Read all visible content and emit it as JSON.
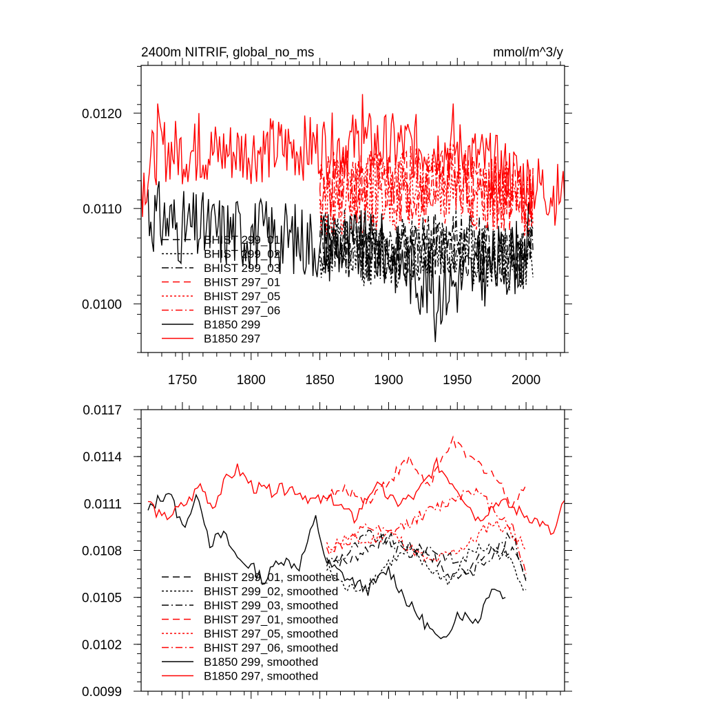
{
  "colors": {
    "black_series": "#000000",
    "red_series": "#ff0000",
    "frame": "#000000",
    "background": "#ffffff"
  },
  "chart_data": [
    {
      "type": "line",
      "title": "2400m NITRIF, global_no_ms",
      "units": "mmol/m^3/y",
      "xlim": [
        1720,
        2028
      ],
      "ylim": [
        0.00949,
        0.0125
      ],
      "xticks": [
        1750,
        1800,
        1850,
        1900,
        1950,
        2000
      ],
      "xtick_labels": [
        "1750",
        "1800",
        "1850",
        "1900",
        "1950",
        "2000"
      ],
      "yticks": [
        0.01,
        0.011,
        0.012
      ],
      "ytick_labels": [
        "0.0100",
        "0.0110",
        "0.0120"
      ],
      "legend_position": "lower-left",
      "series": [
        {
          "name": "BHIST 299_01",
          "color": "black",
          "dash": "dashed",
          "x_start": 1850,
          "x_end": 2005,
          "mean": 0.01065,
          "amp": 0.00035,
          "seed": 11,
          "values_sample": {
            "1850": 0.0106,
            "1900": 0.0104,
            "1950": 0.0106,
            "2000": 0.0103
          }
        },
        {
          "name": "BHIST 299_02",
          "color": "black",
          "dash": "dotted",
          "x_start": 1850,
          "x_end": 2005,
          "mean": 0.01062,
          "amp": 0.00035,
          "seed": 12,
          "values_sample": {
            "1850": 0.0105,
            "1900": 0.0104,
            "1950": 0.0105,
            "2000": 0.0102
          }
        },
        {
          "name": "BHIST 299_03",
          "color": "black",
          "dash": "dashdot",
          "x_start": 1850,
          "x_end": 2005,
          "mean": 0.01068,
          "amp": 0.00035,
          "seed": 13,
          "values_sample": {
            "1850": 0.0107,
            "1900": 0.0105,
            "1950": 0.0106,
            "2000": 0.0104
          }
        },
        {
          "name": "BHIST 297_01",
          "color": "red",
          "dash": "dashed",
          "x_start": 1850,
          "x_end": 2005,
          "mean": 0.01115,
          "amp": 0.0004,
          "seed": 21,
          "values_sample": {
            "1850": 0.0112,
            "1900": 0.0114,
            "1950": 0.0113,
            "2000": 0.0111
          }
        },
        {
          "name": "BHIST 297_05",
          "color": "red",
          "dash": "dotted",
          "x_start": 1850,
          "x_end": 2005,
          "mean": 0.0111,
          "amp": 0.0004,
          "seed": 22,
          "values_sample": {
            "1850": 0.0111,
            "1900": 0.0112,
            "1950": 0.0113,
            "2000": 0.0109
          }
        },
        {
          "name": "BHIST 297_06",
          "color": "red",
          "dash": "dashdot",
          "x_start": 1850,
          "x_end": 2005,
          "mean": 0.0112,
          "amp": 0.0004,
          "seed": 23,
          "values_sample": {
            "1850": 0.0112,
            "1900": 0.0113,
            "1950": 0.0114,
            "2000": 0.011
          }
        },
        {
          "name": "B1850 299",
          "color": "black",
          "dash": "solid",
          "x_start": 1725,
          "x_end": 2002,
          "mean": 0.0107,
          "amp": 0.0004,
          "seed": 31,
          "values_sample": {
            "1725": 0.0112,
            "1750": 0.0109,
            "1800": 0.0108,
            "1850": 0.0106,
            "1900": 0.0104,
            "1934": 0.0096,
            "2000": 0.0104
          }
        },
        {
          "name": "B1850 297",
          "color": "red",
          "dash": "solid",
          "x_start": 1720,
          "x_end": 2028,
          "mean": 0.01115,
          "amp": 0.00035,
          "seed": 32,
          "values_sample": {
            "1720": 0.0113,
            "1732": 0.0121,
            "1762": 0.012,
            "1881": 0.0122,
            "1947": 0.0121,
            "2028": 0.0111
          }
        }
      ]
    },
    {
      "type": "line",
      "title": "",
      "xlim": [
        1720,
        2028
      ],
      "ylim": [
        0.0099,
        0.0117
      ],
      "xticks": [
        1750,
        1800,
        1850,
        1900,
        1950,
        2000
      ],
      "yticks": [
        0.0099,
        0.0102,
        0.0105,
        0.0108,
        0.0111,
        0.0114,
        0.0117
      ],
      "ytick_labels": [
        "0.0099",
        "0.0102",
        "0.0105",
        "0.0108",
        "0.0111",
        "0.0114",
        "0.0117"
      ],
      "legend_position": "lower-left",
      "series": [
        {
          "name": "BHIST 299_01, smoothed",
          "color": "black",
          "dash": "dashed",
          "x": [
            1855,
            1870,
            1885,
            1900,
            1915,
            1930,
            1945,
            1960,
            1975,
            1990,
            2000
          ],
          "y": [
            0.01075,
            0.01072,
            0.01082,
            0.01088,
            0.01082,
            0.01078,
            0.01062,
            0.0107,
            0.0108,
            0.0108,
            0.0106
          ]
        },
        {
          "name": "BHIST 299_02, smoothed",
          "color": "black",
          "dash": "dotted",
          "x": [
            1855,
            1870,
            1885,
            1900,
            1915,
            1930,
            1945,
            1960,
            1975,
            1990,
            2000
          ],
          "y": [
            0.01068,
            0.01055,
            0.01058,
            0.01072,
            0.0108,
            0.01068,
            0.0106,
            0.0108,
            0.01082,
            0.01072,
            0.01055
          ]
        },
        {
          "name": "BHIST 299_03, smoothed",
          "color": "black",
          "dash": "dashdot",
          "x": [
            1855,
            1870,
            1885,
            1900,
            1915,
            1930,
            1945,
            1960,
            1975,
            1990,
            2000
          ],
          "y": [
            0.01072,
            0.01078,
            0.0109,
            0.01085,
            0.01078,
            0.01082,
            0.01075,
            0.01065,
            0.01078,
            0.0109,
            0.01062
          ]
        },
        {
          "name": "BHIST 297_01, smoothed",
          "color": "red",
          "dash": "dashed",
          "x": [
            1855,
            1870,
            1885,
            1900,
            1915,
            1930,
            1945,
            1960,
            1975,
            1990,
            2000
          ],
          "y": [
            0.01115,
            0.01118,
            0.01112,
            0.01125,
            0.01138,
            0.0112,
            0.0115,
            0.01138,
            0.0113,
            0.0111,
            0.01122
          ]
        },
        {
          "name": "BHIST 297_05, smoothed",
          "color": "red",
          "dash": "dotted",
          "x": [
            1855,
            1870,
            1885,
            1900,
            1915,
            1930,
            1945,
            1960,
            1975,
            1990,
            2000
          ],
          "y": [
            0.01082,
            0.01088,
            0.01085,
            0.01092,
            0.01082,
            0.01072,
            0.01078,
            0.01085,
            0.01098,
            0.01092,
            0.0108
          ]
        },
        {
          "name": "BHIST 297_06, smoothed",
          "color": "red",
          "dash": "dashdot",
          "x": [
            1855,
            1870,
            1885,
            1900,
            1915,
            1930,
            1945,
            1960,
            1975,
            1990,
            2000
          ],
          "y": [
            0.0108,
            0.01085,
            0.01095,
            0.0109,
            0.01098,
            0.01105,
            0.01112,
            0.0112,
            0.01108,
            0.01095,
            0.01065
          ]
        },
        {
          "name": "B1850 299, smoothed",
          "color": "black",
          "dash": "solid",
          "x": [
            1725,
            1732,
            1740,
            1750,
            1762,
            1770,
            1780,
            1790,
            1800,
            1810,
            1820,
            1835,
            1847,
            1855,
            1870,
            1885,
            1900,
            1915,
            1930,
            1938,
            1950,
            1965,
            1975,
            1985
          ],
          "y": [
            0.01105,
            0.01112,
            0.01118,
            0.01095,
            0.01115,
            0.01085,
            0.0109,
            0.01075,
            0.0107,
            0.0106,
            0.01075,
            0.0107,
            0.011,
            0.01072,
            0.01062,
            0.01055,
            0.01068,
            0.01045,
            0.0103,
            0.0102,
            0.0104,
            0.01035,
            0.01058,
            0.0105
          ]
        },
        {
          "name": "B1850 297, smoothed",
          "color": "red",
          "dash": "solid",
          "x": [
            1725,
            1735,
            1745,
            1755,
            1763,
            1772,
            1782,
            1790,
            1802,
            1815,
            1830,
            1845,
            1860,
            1875,
            1890,
            1905,
            1920,
            1935,
            1950,
            1965,
            1980,
            1995,
            2010,
            2020,
            2028
          ],
          "y": [
            0.01112,
            0.011,
            0.01105,
            0.01112,
            0.01122,
            0.01108,
            0.01125,
            0.01132,
            0.0112,
            0.01118,
            0.0112,
            0.01112,
            0.01112,
            0.011,
            0.01122,
            0.0111,
            0.01115,
            0.01135,
            0.0112,
            0.011,
            0.01112,
            0.01105,
            0.01098,
            0.0109,
            0.01112
          ]
        }
      ]
    }
  ]
}
